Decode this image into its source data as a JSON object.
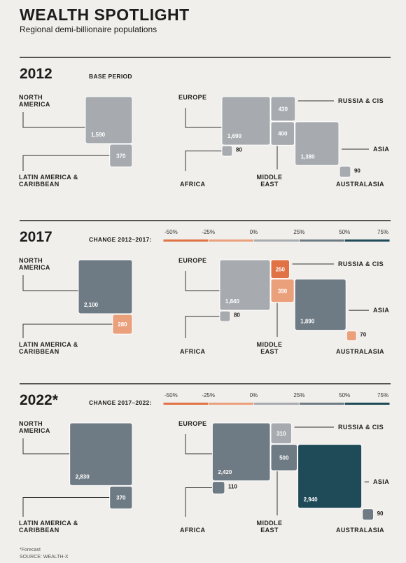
{
  "header": {
    "title": "WEALTH SPOTLIGHT",
    "subtitle": "Regional demi-billionaire populations"
  },
  "panels": [
    {
      "year": "2012",
      "caption": "BASE PERIOD",
      "regions": [
        {
          "name": "NORTH AMERICA",
          "value": 1590,
          "label": "1,590",
          "color": "#a7abaf"
        },
        {
          "name": "LATIN AMERICA & CARIBBEAN",
          "value": 370,
          "label": "370",
          "color": "#a7abaf"
        },
        {
          "name": "EUROPE",
          "value": 1690,
          "label": "1,690",
          "color": "#a7abaf"
        },
        {
          "name": "RUSSIA & CIS",
          "value": 430,
          "label": "430",
          "color": "#a7abaf"
        },
        {
          "name": "MIDDLE EAST",
          "value": 400,
          "label": "400",
          "color": "#a7abaf"
        },
        {
          "name": "ASIA",
          "value": 1380,
          "label": "1,380",
          "color": "#a7abaf"
        },
        {
          "name": "AFRICA",
          "value": 80,
          "label": "80",
          "color": "#a7abaf"
        },
        {
          "name": "AUSTRALASIA",
          "value": 90,
          "label": "90",
          "color": "#a7abaf"
        }
      ]
    },
    {
      "year": "2017",
      "caption": "CHANGE 2012–2017:",
      "legend": {
        "ticks": [
          "-50%",
          "-25%",
          "0%",
          "25%",
          "50%",
          "75%"
        ],
        "colors": [
          "#e07245",
          "#eba07c",
          "#a7abaf",
          "#6f7b84",
          "#1f4a57"
        ]
      },
      "regions": [
        {
          "name": "NORTH AMERICA",
          "value": 2100,
          "label": "2,100",
          "color": "#6f7b84"
        },
        {
          "name": "LATIN AMERICA & CARIBBEAN",
          "value": 280,
          "label": "280",
          "color": "#eba07c"
        },
        {
          "name": "EUROPE",
          "value": 1840,
          "label": "1,840",
          "color": "#a7abaf"
        },
        {
          "name": "RUSSIA & CIS",
          "value": 250,
          "label": "250",
          "color": "#e07245"
        },
        {
          "name": "MIDDLE EAST",
          "value": 390,
          "label": "390",
          "color": "#eba07c"
        },
        {
          "name": "ASIA",
          "value": 1890,
          "label": "1,890",
          "color": "#6f7b84"
        },
        {
          "name": "AFRICA",
          "value": 80,
          "label": "80",
          "color": "#a7abaf"
        },
        {
          "name": "AUSTRALASIA",
          "value": 70,
          "label": "70",
          "color": "#eba07c"
        }
      ]
    },
    {
      "year": "2022*",
      "caption": "CHANGE 2017–2022:",
      "legend": {
        "ticks": [
          "-50%",
          "-25%",
          "0%",
          "25%",
          "50%",
          "75%"
        ],
        "colors": [
          "#e07245",
          "#eba07c",
          "#a7abaf",
          "#6f7b84",
          "#1f4a57"
        ]
      },
      "regions": [
        {
          "name": "NORTH AMERICA",
          "value": 2830,
          "label": "2,830",
          "color": "#6f7b84"
        },
        {
          "name": "LATIN AMERICA & CARIBBEAN",
          "value": 370,
          "label": "370",
          "color": "#6f7b84"
        },
        {
          "name": "EUROPE",
          "value": 2420,
          "label": "2,420",
          "color": "#6f7b84"
        },
        {
          "name": "RUSSIA & CIS",
          "value": 310,
          "label": "310",
          "color": "#a7abaf"
        },
        {
          "name": "MIDDLE EAST",
          "value": 500,
          "label": "500",
          "color": "#6f7b84"
        },
        {
          "name": "ASIA",
          "value": 2940,
          "label": "2,940",
          "color": "#1f4a57"
        },
        {
          "name": "AFRICA",
          "value": 110,
          "label": "110",
          "color": "#6f7b84"
        },
        {
          "name": "AUSTRALASIA",
          "value": 90,
          "label": "90",
          "color": "#6f7b84"
        }
      ]
    }
  ],
  "footer": {
    "note": "*Forecast",
    "source": "SOURCE: WEALTH-X"
  }
}
